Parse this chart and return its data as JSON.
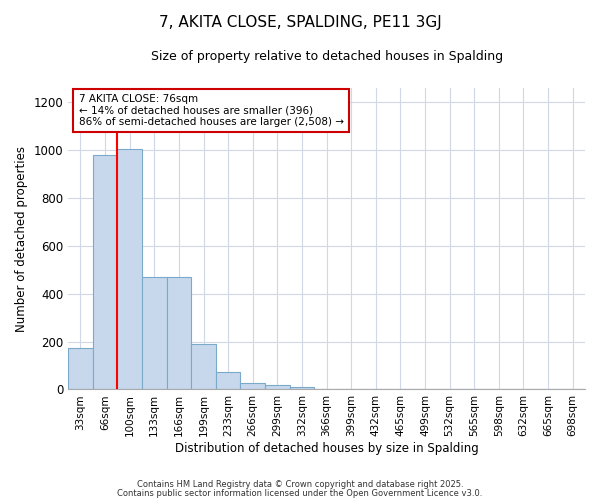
{
  "title": "7, AKITA CLOSE, SPALDING, PE11 3GJ",
  "subtitle": "Size of property relative to detached houses in Spalding",
  "xlabel": "Distribution of detached houses by size in Spalding",
  "ylabel": "Number of detached properties",
  "bar_color": "#c8d8ec",
  "bar_edge_color": "#7aaaca",
  "bins": [
    "33sqm",
    "66sqm",
    "100sqm",
    "133sqm",
    "166sqm",
    "199sqm",
    "233sqm",
    "266sqm",
    "299sqm",
    "332sqm",
    "366sqm",
    "399sqm",
    "432sqm",
    "465sqm",
    "499sqm",
    "532sqm",
    "565sqm",
    "598sqm",
    "632sqm",
    "665sqm",
    "698sqm"
  ],
  "values": [
    175,
    980,
    1005,
    470,
    470,
    190,
    75,
    25,
    20,
    10,
    0,
    0,
    0,
    0,
    0,
    0,
    0,
    0,
    0,
    0,
    0
  ],
  "red_line_x": 1.5,
  "annotation_line1": "7 AKITA CLOSE: 76sqm",
  "annotation_line2": "← 14% of detached houses are smaller (396)",
  "annotation_line3": "86% of semi-detached houses are larger (2,508) →",
  "annotation_box_color": "#ffffff",
  "annotation_box_edge": "#cc0000",
  "ylim": [
    0,
    1260
  ],
  "yticks": [
    0,
    200,
    400,
    600,
    800,
    1000,
    1200
  ],
  "footer1": "Contains HM Land Registry data © Crown copyright and database right 2025.",
  "footer2": "Contains public sector information licensed under the Open Government Licence v3.0.",
  "bg_color": "#ffffff",
  "plot_bg_color": "#ffffff",
  "grid_color": "#d0d8e8"
}
